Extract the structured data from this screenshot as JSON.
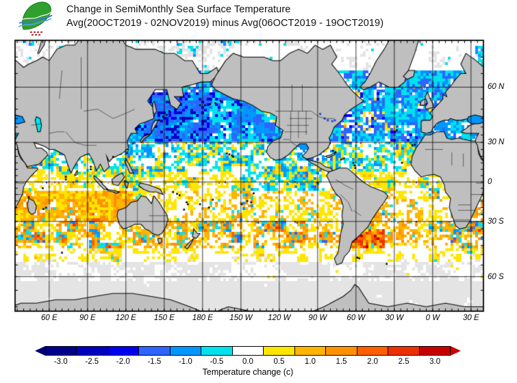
{
  "header": {
    "title_line1": "Change in SemiMonthly Sea Surface Temperature",
    "title_line2": "Avg(20OCT2019 - 02NOV2019) minus Avg(06OCT2019 - 19OCT2019)"
  },
  "logo": {
    "description": "green leaf with blue wave lines",
    "leaf_color": "#2FA02F",
    "wave_color": "#3C78DC"
  },
  "map": {
    "lat_tick_labels": [
      "60 N",
      "30 N",
      "0",
      "30 S",
      "60 S"
    ],
    "lon_tick_labels": [
      "60 E",
      "90 E",
      "120 E",
      "150 E",
      "180 E",
      "150 W",
      "120 W",
      "90 W",
      "60 W",
      "30 W",
      "0 W",
      "30 E"
    ],
    "land_color": "#BFBFBF",
    "no_data_color": "#E4E4E4",
    "grid_color": "#000000"
  },
  "colorbar": {
    "caption": "Temperature change  (c)",
    "tick_labels": [
      "-3.0",
      "-2.5",
      "-2.0",
      "-1.5",
      "-1.0",
      "-0.5",
      "0.0",
      "0.5",
      "1.0",
      "1.5",
      "2.0",
      "2.5",
      "3.0"
    ],
    "segment_colors": [
      "#00008B",
      "#0000C0",
      "#0000F0",
      "#2E64FF",
      "#0096FF",
      "#00E1EE",
      "#FFFFFF",
      "#FFE600",
      "#FFB400",
      "#FF9100",
      "#FF5F00",
      "#EE3000",
      "#C80000"
    ],
    "left_arrow_color": "#000070",
    "right_arrow_color": "#C80000"
  },
  "chart_data": {
    "type": "heatmap",
    "title": "Change in SemiMonthly Sea Surface Temperature",
    "subtitle": "Avg(20OCT2019 - 02NOV2019) minus Avg(06OCT2019 - 19OCT2019)",
    "variable": "sea surface temperature change",
    "units": "degrees C",
    "colorbar_label": "Temperature change  (c)",
    "levels": [
      -3.0,
      -2.5,
      -2.0,
      -1.5,
      -1.0,
      -0.5,
      0.0,
      0.5,
      1.0,
      1.5,
      2.0,
      2.5,
      3.0
    ],
    "palette": [
      "#00008B",
      "#0000C0",
      "#0000F0",
      "#2E64FF",
      "#0096FF",
      "#00E1EE",
      "#FFFFFF",
      "#FFE600",
      "#FFB400",
      "#FF9100",
      "#FF5F00",
      "#EE3000",
      "#C80000"
    ],
    "projection": "Mercator, Pacific-centered world ocean, approx 74S-74N, longitudes 33E eastward around to 33E",
    "grid": "30-degree graticule, on",
    "legend_position": "bottom",
    "x_axis": {
      "tick_labels": [
        "60 E",
        "90 E",
        "120 E",
        "150 E",
        "180 E",
        "150 W",
        "120 W",
        "90 W",
        "60 W",
        "30 W",
        "0 W",
        "30 E"
      ]
    },
    "y_axis": {
      "tick_labels": [
        "60 N",
        "30 N",
        "0",
        "30 S",
        "60 S"
      ]
    },
    "regional_pattern": [
      {
        "region": "Northwest Pacific 30N-60N",
        "value_c": "-1.0 to -3.0 strong cooling (dark blue)"
      },
      {
        "region": "Northeast / central North Pacific",
        "value_c": "-0.5 to -1.5 cooling (blue, cyan)"
      },
      {
        "region": "North Atlantic 30N-65N",
        "value_c": "-0.5 to -1.5 cooling (blue, cyan) with a few warm specks near 40N"
      },
      {
        "region": "Mediterranean and Black Sea",
        "value_c": "-0.5 to -1.0 cooling (cyan)"
      },
      {
        "region": "Tropics 10S-25N",
        "value_c": "-0.5 to +0.5 near zero (white with cyan and yellow speckles)"
      },
      {
        "region": "Southern subtropics 10S-45S",
        "value_c": "+0.5 to +1.5 warming (yellow, gold, orange)"
      },
      {
        "region": "Southwest Atlantic / Argentine basin",
        "value_c": "+1.5 to +3.0 strong warming (orange, red)"
      },
      {
        "region": "Arctic ocean north of 65N",
        "value_c": "no data / near zero (white-gray)"
      },
      {
        "region": "Southern Ocean south of 55S",
        "value_c": "no data (light gray)"
      }
    ]
  }
}
